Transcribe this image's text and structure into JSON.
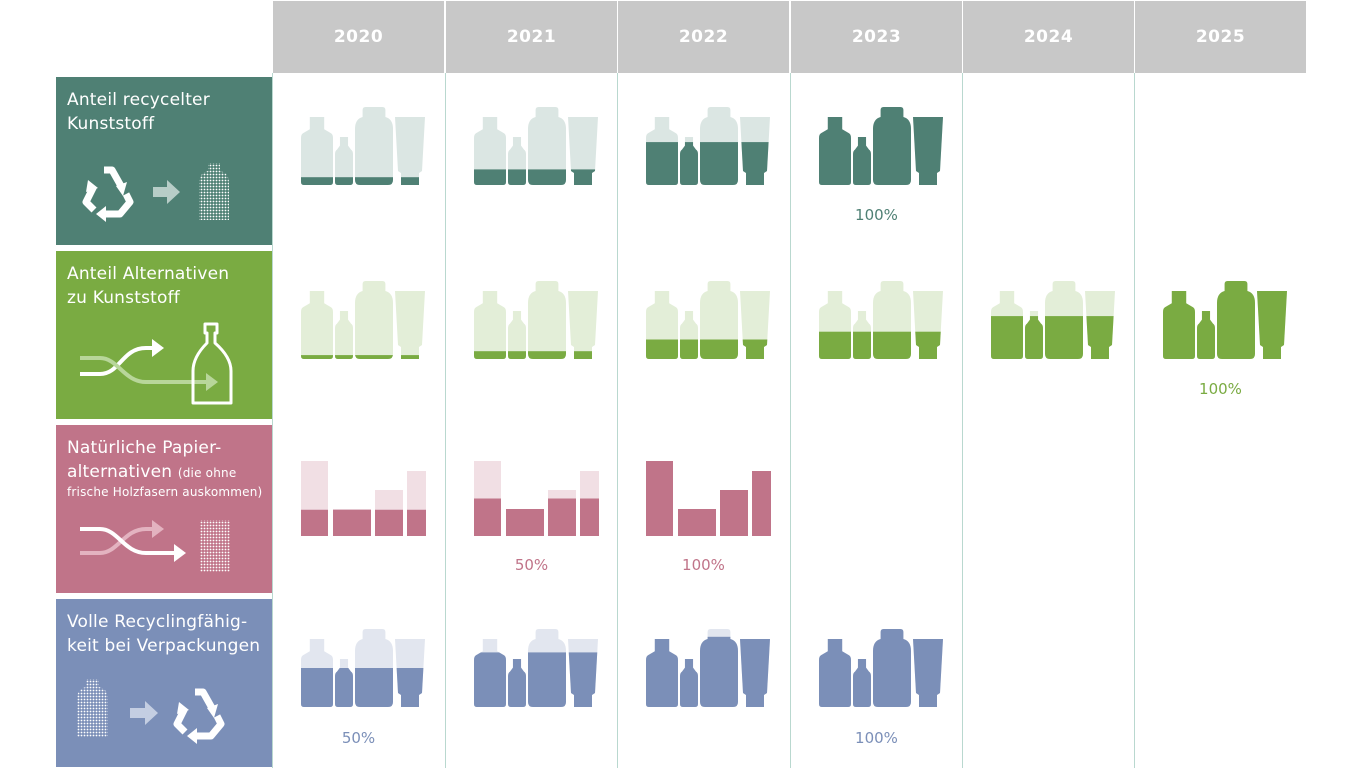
{
  "years": [
    "2020",
    "2021",
    "2022",
    "2023",
    "2024",
    "2025"
  ],
  "rows": [
    {
      "id": "recycled-plastic",
      "title_line1": "Anteil recycelter",
      "title_line2": "Kunststoff",
      "label_color": "#4f8074",
      "fill_color": "#4f8074",
      "empty_color": "#dbe6e3",
      "icon": "recycle-to-bottle-icon",
      "type": "bottles",
      "levels": [
        0.1,
        0.2,
        0.55,
        1.0,
        null,
        null
      ],
      "percent_labels": [
        "",
        "",
        "",
        "100%",
        "",
        ""
      ]
    },
    {
      "id": "plastic-alternatives",
      "title_line1": "Anteil Alternativen",
      "title_line2": "zu Kunststoff",
      "label_color": "#7aab42",
      "fill_color": "#7aab42",
      "empty_color": "#e3eed8",
      "icon": "switch-to-glass-bottle-icon",
      "type": "bottles",
      "levels": [
        0.05,
        0.1,
        0.25,
        0.35,
        0.55,
        1.0
      ],
      "percent_labels": [
        "",
        "",
        "",
        "",
        "",
        "100%"
      ]
    },
    {
      "id": "paper-alternatives",
      "title_line1": "Natürliche Papier-",
      "title_line2": "alternativen",
      "title_small": "(die ohne",
      "title_line3": "frische Holzfasern auskommen)",
      "label_color": "#c07489",
      "fill_color": "#c07489",
      "empty_color": "#f1dfe4",
      "icon": "switch-to-paper-icon",
      "type": "bars",
      "levels": [
        0.35,
        0.5,
        1.0,
        null,
        null,
        null
      ],
      "percent_labels": [
        "",
        "50%",
        "100%",
        "",
        "",
        ""
      ]
    },
    {
      "id": "recyclability",
      "title_line1": "Volle Recyclingfähig-",
      "title_line2": "keit bei Verpackungen",
      "label_color": "#7b8fb8",
      "fill_color": "#7b8fb8",
      "empty_color": "#e2e6ef",
      "icon": "bottle-to-recycle-icon",
      "type": "bottles",
      "levels": [
        0.5,
        0.7,
        0.9,
        1.0,
        null,
        null
      ],
      "percent_labels": [
        "50%",
        "",
        "",
        "100%",
        "",
        ""
      ]
    }
  ]
}
